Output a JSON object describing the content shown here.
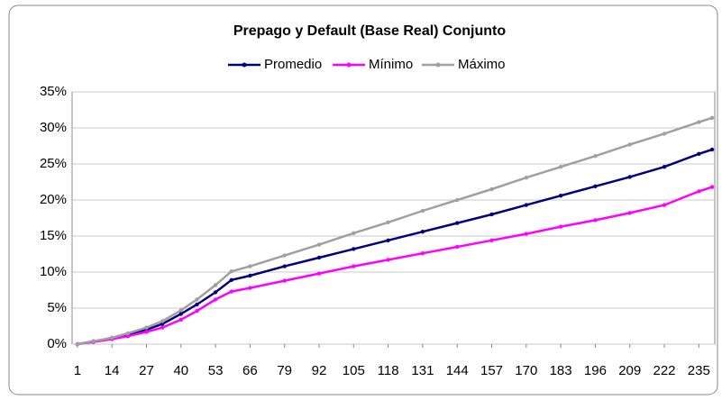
{
  "chart_data": {
    "type": "line",
    "title": "Prepago y Default (Base Real) Conjunto",
    "x": [
      1,
      7,
      14,
      20,
      27,
      33,
      40,
      46,
      53,
      59,
      66,
      79,
      92,
      105,
      118,
      131,
      144,
      157,
      170,
      183,
      196,
      209,
      222,
      235,
      240
    ],
    "series": [
      {
        "name": "Promedio",
        "color": "#000080",
        "values": [
          0,
          0.4,
          0.8,
          1.3,
          2,
          2.8,
          4.2,
          5.5,
          7.2,
          8.9,
          9.5,
          10.8,
          12,
          13.2,
          14.4,
          15.6,
          16.8,
          18,
          19.3,
          20.6,
          21.9,
          23.2,
          24.6,
          26.4,
          27
        ]
      },
      {
        "name": "Mínimo",
        "color": "#ff00ff",
        "values": [
          0,
          0.3,
          0.7,
          1.1,
          1.7,
          2.3,
          3.4,
          4.6,
          6.2,
          7.3,
          7.8,
          8.8,
          9.8,
          10.8,
          11.7,
          12.6,
          13.5,
          14.4,
          15.3,
          16.3,
          17.2,
          18.2,
          19.3,
          21.2,
          21.8
        ]
      },
      {
        "name": "Máximo",
        "color": "#a0a0a0",
        "values": [
          0,
          0.4,
          0.9,
          1.5,
          2.3,
          3.2,
          4.7,
          6.2,
          8.2,
          10.1,
          10.8,
          12.3,
          13.8,
          15.4,
          16.9,
          18.5,
          20,
          21.5,
          23.1,
          24.6,
          26.1,
          27.7,
          29.2,
          30.8,
          31.4
        ]
      }
    ],
    "xlim": [
      -1,
      241
    ],
    "xticks": [
      1,
      14,
      27,
      40,
      53,
      66,
      79,
      92,
      105,
      118,
      131,
      144,
      157,
      170,
      183,
      196,
      209,
      222,
      235
    ],
    "ylim": [
      0,
      35
    ],
    "yticks": [
      {
        "value": 0,
        "label": "0%"
      },
      {
        "value": 5,
        "label": "5%"
      },
      {
        "value": 10,
        "label": "10%"
      },
      {
        "value": 15,
        "label": "15%"
      },
      {
        "value": 20,
        "label": "20%"
      },
      {
        "value": 25,
        "label": "25%"
      },
      {
        "value": 30,
        "label": "30%"
      },
      {
        "value": 35,
        "label": "35%"
      }
    ],
    "grid": true,
    "legend": "top"
  }
}
